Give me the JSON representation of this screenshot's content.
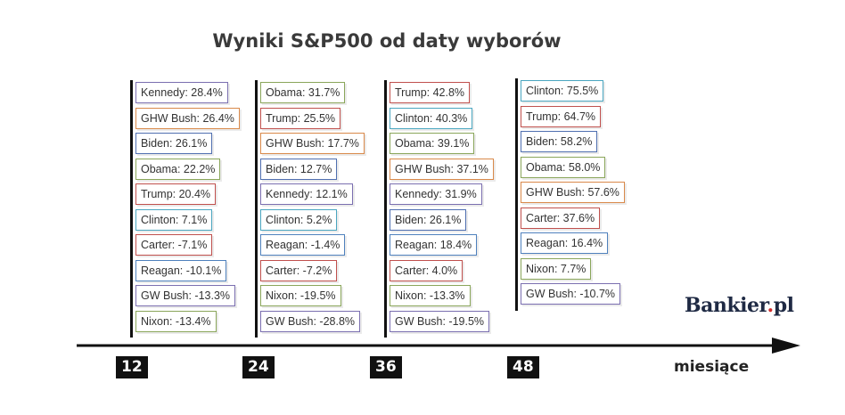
{
  "chart_data": {
    "type": "table",
    "title": "Wyniki S&P500 od daty wyborów",
    "xlabel": "miesiące",
    "categories": [
      "12",
      "24",
      "36",
      "48"
    ],
    "columns": [
      {
        "month": "12",
        "entries": [
          {
            "label": "Kennedy: 28.4%",
            "color": "#7b6fb0"
          },
          {
            "label": "GHW Bush: 26.4%",
            "color": "#d9894a"
          },
          {
            "label": "Biden: 26.1%",
            "color": "#4f6fb0"
          },
          {
            "label": "Obama: 22.2%",
            "color": "#8aa65a"
          },
          {
            "label": "Trump: 20.4%",
            "color": "#c0504d"
          },
          {
            "label": "Clinton: 7.1%",
            "color": "#4aa6c0"
          },
          {
            "label": "Carter: -7.1%",
            "color": "#c0504d"
          },
          {
            "label": "Reagan: -10.1%",
            "color": "#4f81bd"
          },
          {
            "label": "GW Bush: -13.3%",
            "color": "#7b6fb0"
          },
          {
            "label": "Nixon: -13.4%",
            "color": "#8aa65a"
          }
        ]
      },
      {
        "month": "24",
        "entries": [
          {
            "label": "Obama: 31.7%",
            "color": "#8aa65a"
          },
          {
            "label": "Trump: 25.5%",
            "color": "#c0504d"
          },
          {
            "label": "GHW Bush: 17.7%",
            "color": "#d9894a"
          },
          {
            "label": "Biden: 12.7%",
            "color": "#4f6fb0"
          },
          {
            "label": "Kennedy: 12.1%",
            "color": "#7b6fb0"
          },
          {
            "label": "Clinton: 5.2%",
            "color": "#4aa6c0"
          },
          {
            "label": "Reagan: -1.4%",
            "color": "#4f81bd"
          },
          {
            "label": "Carter: -7.2%",
            "color": "#c0504d"
          },
          {
            "label": "Nixon: -19.5%",
            "color": "#8aa65a"
          },
          {
            "label": "GW Bush: -28.8%",
            "color": "#7b6fb0"
          }
        ]
      },
      {
        "month": "36",
        "entries": [
          {
            "label": "Trump: 42.8%",
            "color": "#c0504d"
          },
          {
            "label": "Clinton: 40.3%",
            "color": "#4aa6c0"
          },
          {
            "label": "Obama: 39.1%",
            "color": "#8aa65a"
          },
          {
            "label": "GHW Bush: 37.1%",
            "color": "#d9894a"
          },
          {
            "label": "Kennedy: 31.9%",
            "color": "#7b6fb0"
          },
          {
            "label": "Biden: 26.1%",
            "color": "#4f6fb0"
          },
          {
            "label": "Reagan: 18.4%",
            "color": "#4f81bd"
          },
          {
            "label": "Carter: 4.0%",
            "color": "#c0504d"
          },
          {
            "label": "Nixon: -13.3%",
            "color": "#8aa65a"
          },
          {
            "label": "GW Bush: -19.5%",
            "color": "#7b6fb0"
          }
        ]
      },
      {
        "month": "48",
        "entries": [
          {
            "label": "Clinton: 75.5%",
            "color": "#4aa6c0"
          },
          {
            "label": "Trump: 64.7%",
            "color": "#c0504d"
          },
          {
            "label": "Biden: 58.2%",
            "color": "#4f6fb0"
          },
          {
            "label": "Obama: 58.0%",
            "color": "#8aa65a"
          },
          {
            "label": "GHW Bush: 57.6%",
            "color": "#d9894a"
          },
          {
            "label": "Carter: 37.6%",
            "color": "#c0504d"
          },
          {
            "label": "Reagan: 16.4%",
            "color": "#4f81bd"
          },
          {
            "label": "Nixon: 7.7%",
            "color": "#8aa65a"
          },
          {
            "label": "GW Bush: -10.7%",
            "color": "#7b6fb0"
          }
        ]
      }
    ]
  },
  "branding": {
    "logo_main": "Bankier",
    "logo_dot": ".",
    "logo_suffix": "pl"
  }
}
